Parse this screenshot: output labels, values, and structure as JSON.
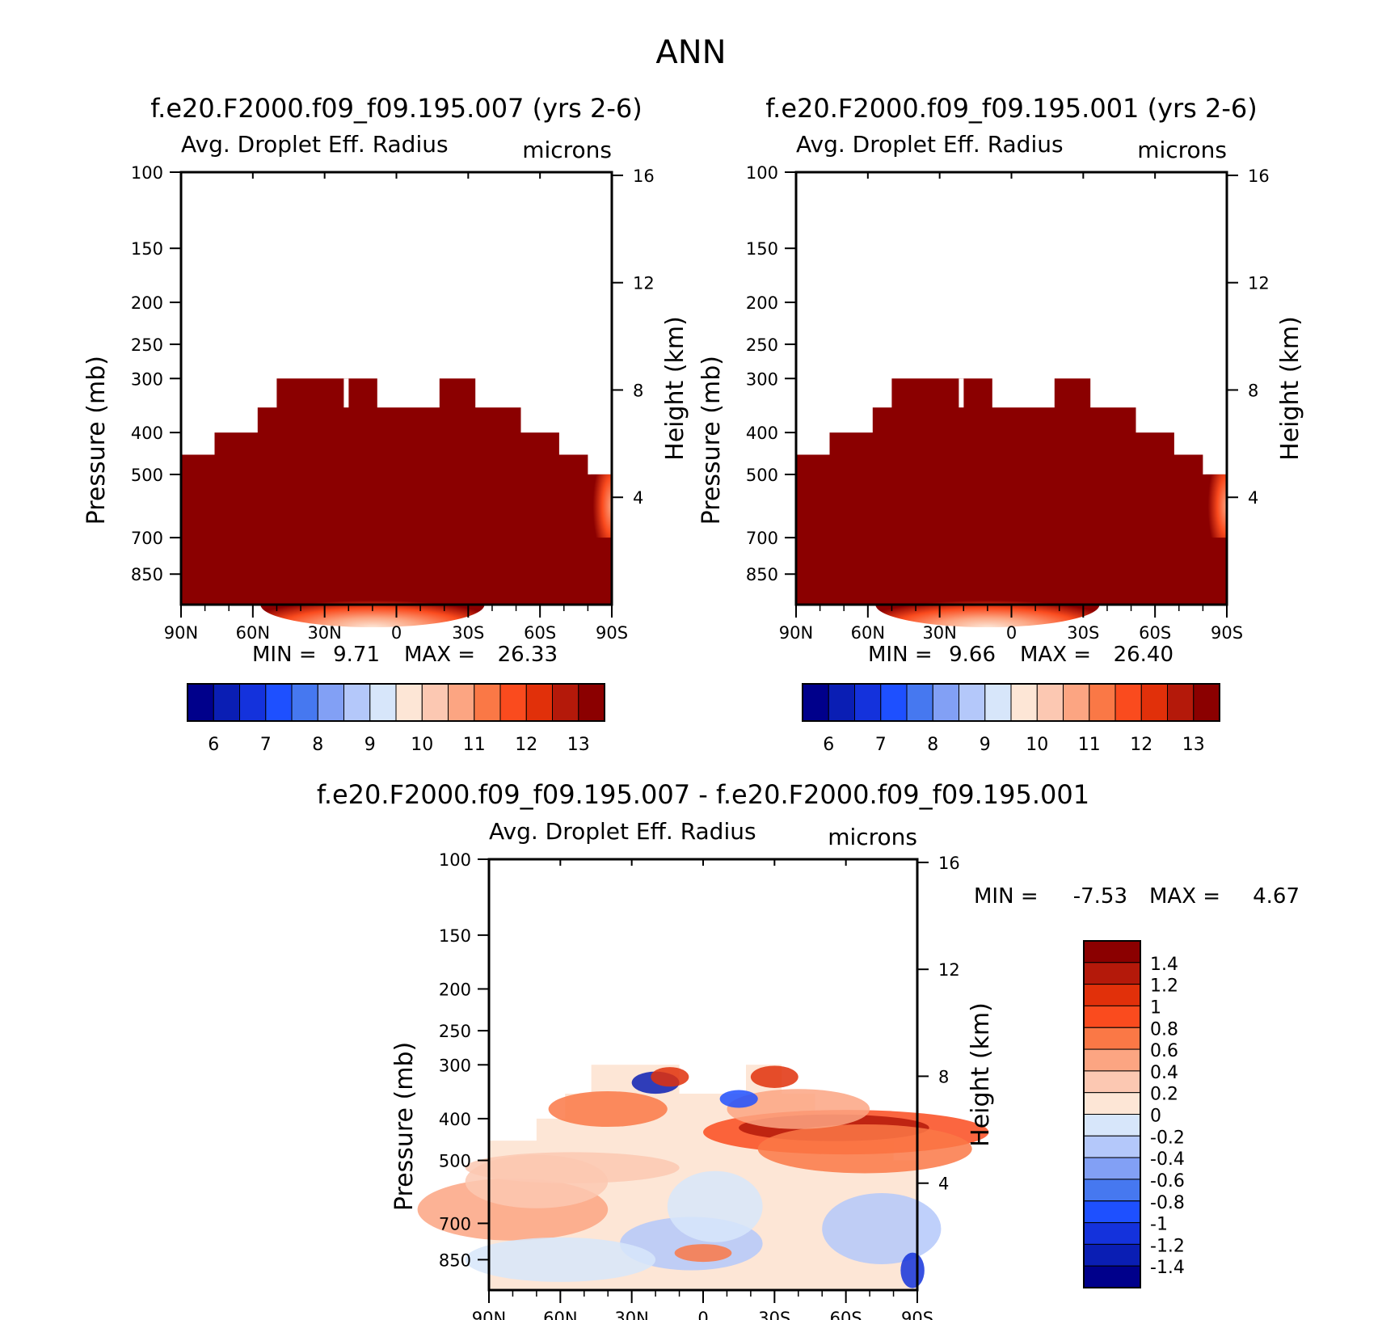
{
  "figure_title": "ANN",
  "common": {
    "y_ticks": [
      "100",
      "150",
      "200",
      "250",
      "300",
      "400",
      "500",
      "700",
      "850"
    ],
    "x_ticks": [
      "90N",
      "60N",
      "30N",
      "0",
      "30S",
      "60S",
      "90S"
    ],
    "height_ticks": [
      "16",
      "12",
      "8",
      "4"
    ],
    "y_label": "Pressure (mb)",
    "right_label": "Height (km)",
    "var_label": "Avg. Droplet Eff. Radius",
    "units": "microns",
    "min_label": "MIN =",
    "max_label": "MAX ="
  },
  "colors": {
    "dark_red": "#8b0000",
    "seq_palette": [
      "#00008b",
      "#0a1eb4",
      "#1432dc",
      "#1e50ff",
      "#4678f0",
      "#82a0f5",
      "#b4c8fa",
      "#d7e6fa",
      "#fde6d6",
      "#fcc8b2",
      "#fca582",
      "#fa7846",
      "#fa4b1e",
      "#e1300a",
      "#b4190a",
      "#8b0000"
    ],
    "diff_palette": [
      "#00008b",
      "#0a1eb4",
      "#1432dc",
      "#1e50ff",
      "#4678f0",
      "#82a0f5",
      "#b4c8fa",
      "#d7e6fa",
      "#fde6d6",
      "#fcc8b2",
      "#fca582",
      "#fa7846",
      "#fa4b1e",
      "#e1300a",
      "#b4190a",
      "#8b0000"
    ]
  },
  "chart_data": [
    {
      "type": "heatmap",
      "title": "f.e20.F2000.f09_f09.195.007 (yrs 2-6)",
      "xlabel": "",
      "ylabel": "Pressure (mb)",
      "y_scale": "log",
      "ylim": [
        100,
        1000
      ],
      "xlim": [
        90,
        -90
      ],
      "min": "9.71",
      "max": "26.33",
      "colorbar_labels": [
        "6",
        "7",
        "8",
        "9",
        "10",
        "11",
        "12",
        "13"
      ],
      "cloud_top_profile": [
        {
          "lat": 90,
          "p": 450
        },
        {
          "lat": 76,
          "p": 400
        },
        {
          "lat": 58,
          "p": 350
        },
        {
          "lat": 50,
          "p": 300
        },
        {
          "lat": 22,
          "p": 300
        },
        {
          "lat": 20,
          "p": 300
        },
        {
          "lat": 8,
          "p": 350
        },
        {
          "lat": -18,
          "p": 300
        },
        {
          "lat": -33,
          "p": 350
        },
        {
          "lat": -52,
          "p": 400
        },
        {
          "lat": -68,
          "p": 450
        },
        {
          "lat": -80,
          "p": 500
        }
      ]
    },
    {
      "type": "heatmap",
      "title": "f.e20.F2000.f09_f09.195.001 (yrs 2-6)",
      "xlabel": "",
      "ylabel": "Pressure (mb)",
      "y_scale": "log",
      "ylim": [
        100,
        1000
      ],
      "xlim": [
        90,
        -90
      ],
      "min": "9.66",
      "max": "26.40",
      "colorbar_labels": [
        "6",
        "7",
        "8",
        "9",
        "10",
        "11",
        "12",
        "13"
      ],
      "cloud_top_profile": [
        {
          "lat": 90,
          "p": 450
        },
        {
          "lat": 76,
          "p": 400
        },
        {
          "lat": 58,
          "p": 350
        },
        {
          "lat": 50,
          "p": 300
        },
        {
          "lat": 22,
          "p": 300
        },
        {
          "lat": 20,
          "p": 300
        },
        {
          "lat": 8,
          "p": 350
        },
        {
          "lat": -18,
          "p": 300
        },
        {
          "lat": -33,
          "p": 350
        },
        {
          "lat": -52,
          "p": 400
        },
        {
          "lat": -68,
          "p": 450
        },
        {
          "lat": -80,
          "p": 500
        }
      ]
    },
    {
      "type": "heatmap",
      "title": "f.e20.F2000.f09_f09.195.007 - f.e20.F2000.f09_f09.195.001",
      "xlabel": "",
      "ylabel": "Pressure (mb)",
      "y_scale": "log",
      "ylim": [
        100,
        1000
      ],
      "xlim": [
        90,
        -90
      ],
      "min": "-7.53",
      "max": "4.67",
      "colorbar_labels": [
        "1.4",
        "1.2",
        "1",
        "0.8",
        "0.6",
        "0.4",
        "0.2",
        "0",
        "-0.2",
        "-0.4",
        "-0.6",
        "-0.8",
        "-1",
        "-1.2",
        "-1.4"
      ]
    }
  ]
}
